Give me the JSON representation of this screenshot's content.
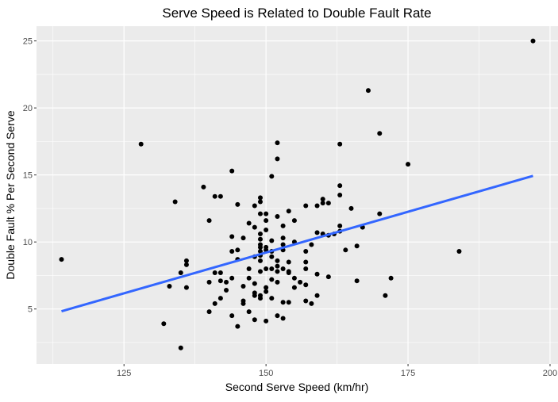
{
  "chart_data": {
    "type": "scatter",
    "title": "Serve Speed is Related to Double Fault Rate",
    "xlabel": "Second Serve Speed (km/hr)",
    "ylabel": "Double Fault % Per Second Serve",
    "xlim": [
      109.6,
      201.4
    ],
    "ylim": [
      0.9,
      26.1
    ],
    "x_ticks": [
      125,
      150,
      175,
      200
    ],
    "y_ticks": [
      5,
      10,
      15,
      20,
      25
    ],
    "grid": true,
    "legend": "none",
    "colors": {
      "panel": "#ebebeb",
      "grid_major": "#ffffff",
      "points": "#000000",
      "trend_line": "#3366ff"
    },
    "trend_line": {
      "x": [
        114,
        197
      ],
      "y": [
        4.83,
        14.93
      ]
    },
    "points": [
      {
        "x": 114,
        "y": 8.7
      },
      {
        "x": 128,
        "y": 17.3
      },
      {
        "x": 132,
        "y": 3.9
      },
      {
        "x": 133,
        "y": 6.7
      },
      {
        "x": 134,
        "y": 13.0
      },
      {
        "x": 135,
        "y": 2.1
      },
      {
        "x": 135,
        "y": 7.7
      },
      {
        "x": 136,
        "y": 8.6
      },
      {
        "x": 136,
        "y": 8.3
      },
      {
        "x": 136,
        "y": 6.6
      },
      {
        "x": 139,
        "y": 14.1
      },
      {
        "x": 140,
        "y": 11.6
      },
      {
        "x": 140,
        "y": 4.8
      },
      {
        "x": 140,
        "y": 7.0
      },
      {
        "x": 141,
        "y": 13.4
      },
      {
        "x": 141,
        "y": 5.4
      },
      {
        "x": 141,
        "y": 7.7
      },
      {
        "x": 142,
        "y": 13.4
      },
      {
        "x": 142,
        "y": 7.1
      },
      {
        "x": 142,
        "y": 7.7
      },
      {
        "x": 142,
        "y": 5.8
      },
      {
        "x": 143,
        "y": 6.4
      },
      {
        "x": 143,
        "y": 7.0
      },
      {
        "x": 144,
        "y": 15.3
      },
      {
        "x": 144,
        "y": 10.4
      },
      {
        "x": 144,
        "y": 9.3
      },
      {
        "x": 144,
        "y": 7.3
      },
      {
        "x": 144,
        "y": 4.5
      },
      {
        "x": 145,
        "y": 12.8
      },
      {
        "x": 145,
        "y": 9.4
      },
      {
        "x": 145,
        "y": 8.7
      },
      {
        "x": 145,
        "y": 3.7
      },
      {
        "x": 146,
        "y": 10.3
      },
      {
        "x": 146,
        "y": 6.7
      },
      {
        "x": 146,
        "y": 5.6
      },
      {
        "x": 146,
        "y": 5.4
      },
      {
        "x": 147,
        "y": 11.4
      },
      {
        "x": 147,
        "y": 8.0
      },
      {
        "x": 147,
        "y": 7.3
      },
      {
        "x": 147,
        "y": 4.8
      },
      {
        "x": 148,
        "y": 12.7
      },
      {
        "x": 148,
        "y": 11.1
      },
      {
        "x": 148,
        "y": 8.9
      },
      {
        "x": 148,
        "y": 6.9
      },
      {
        "x": 148,
        "y": 6.0
      },
      {
        "x": 148,
        "y": 6.2
      },
      {
        "x": 148,
        "y": 4.2
      },
      {
        "x": 149,
        "y": 13.3
      },
      {
        "x": 149,
        "y": 13.0
      },
      {
        "x": 149,
        "y": 12.1
      },
      {
        "x": 149,
        "y": 10.6
      },
      {
        "x": 149,
        "y": 10.2
      },
      {
        "x": 149,
        "y": 9.8
      },
      {
        "x": 149,
        "y": 9.6
      },
      {
        "x": 149,
        "y": 9.3
      },
      {
        "x": 149,
        "y": 9.0
      },
      {
        "x": 149,
        "y": 8.6
      },
      {
        "x": 149,
        "y": 7.8
      },
      {
        "x": 149,
        "y": 5.8
      },
      {
        "x": 149,
        "y": 6.0
      },
      {
        "x": 150,
        "y": 12.1
      },
      {
        "x": 150,
        "y": 11.6
      },
      {
        "x": 150,
        "y": 10.9
      },
      {
        "x": 150,
        "y": 9.6
      },
      {
        "x": 150,
        "y": 9.4
      },
      {
        "x": 150,
        "y": 8.0
      },
      {
        "x": 150,
        "y": 6.6
      },
      {
        "x": 150,
        "y": 6.3
      },
      {
        "x": 150,
        "y": 4.1
      },
      {
        "x": 151,
        "y": 14.9
      },
      {
        "x": 151,
        "y": 10.1
      },
      {
        "x": 151,
        "y": 9.3
      },
      {
        "x": 151,
        "y": 8.9
      },
      {
        "x": 151,
        "y": 8.0
      },
      {
        "x": 151,
        "y": 7.2
      },
      {
        "x": 151,
        "y": 5.8
      },
      {
        "x": 152,
        "y": 17.4
      },
      {
        "x": 152,
        "y": 16.2
      },
      {
        "x": 152,
        "y": 11.9
      },
      {
        "x": 152,
        "y": 8.6
      },
      {
        "x": 152,
        "y": 8.2
      },
      {
        "x": 152,
        "y": 7.8
      },
      {
        "x": 152,
        "y": 7.0
      },
      {
        "x": 152,
        "y": 4.5
      },
      {
        "x": 153,
        "y": 11.2
      },
      {
        "x": 153,
        "y": 10.3
      },
      {
        "x": 153,
        "y": 9.8
      },
      {
        "x": 153,
        "y": 9.4
      },
      {
        "x": 153,
        "y": 8.0
      },
      {
        "x": 153,
        "y": 5.5
      },
      {
        "x": 153,
        "y": 4.3
      },
      {
        "x": 154,
        "y": 12.3
      },
      {
        "x": 154,
        "y": 8.5
      },
      {
        "x": 154,
        "y": 7.8
      },
      {
        "x": 154,
        "y": 7.7
      },
      {
        "x": 154,
        "y": 5.5
      },
      {
        "x": 155,
        "y": 11.6
      },
      {
        "x": 155,
        "y": 10.0
      },
      {
        "x": 155,
        "y": 7.3
      },
      {
        "x": 155,
        "y": 6.6
      },
      {
        "x": 156,
        "y": 7.0
      },
      {
        "x": 157,
        "y": 12.7
      },
      {
        "x": 157,
        "y": 9.3
      },
      {
        "x": 157,
        "y": 8.5
      },
      {
        "x": 157,
        "y": 8.0
      },
      {
        "x": 157,
        "y": 6.8
      },
      {
        "x": 157,
        "y": 5.6
      },
      {
        "x": 158,
        "y": 9.8
      },
      {
        "x": 158,
        "y": 5.4
      },
      {
        "x": 159,
        "y": 12.7
      },
      {
        "x": 159,
        "y": 10.7
      },
      {
        "x": 159,
        "y": 7.6
      },
      {
        "x": 159,
        "y": 6.0
      },
      {
        "x": 160,
        "y": 13.2
      },
      {
        "x": 160,
        "y": 12.9
      },
      {
        "x": 160,
        "y": 10.6
      },
      {
        "x": 161,
        "y": 12.9
      },
      {
        "x": 161,
        "y": 10.5
      },
      {
        "x": 161,
        "y": 7.4
      },
      {
        "x": 162,
        "y": 10.6
      },
      {
        "x": 163,
        "y": 17.3
      },
      {
        "x": 163,
        "y": 14.2
      },
      {
        "x": 163,
        "y": 13.5
      },
      {
        "x": 163,
        "y": 11.2
      },
      {
        "x": 163,
        "y": 10.8
      },
      {
        "x": 164,
        "y": 9.4
      },
      {
        "x": 165,
        "y": 12.5
      },
      {
        "x": 166,
        "y": 9.7
      },
      {
        "x": 166,
        "y": 7.1
      },
      {
        "x": 167,
        "y": 11.1
      },
      {
        "x": 168,
        "y": 21.3
      },
      {
        "x": 170,
        "y": 18.1
      },
      {
        "x": 170,
        "y": 12.1
      },
      {
        "x": 171,
        "y": 6.0
      },
      {
        "x": 172,
        "y": 7.3
      },
      {
        "x": 175,
        "y": 15.8
      },
      {
        "x": 184,
        "y": 9.3
      },
      {
        "x": 197,
        "y": 25.0
      }
    ]
  }
}
